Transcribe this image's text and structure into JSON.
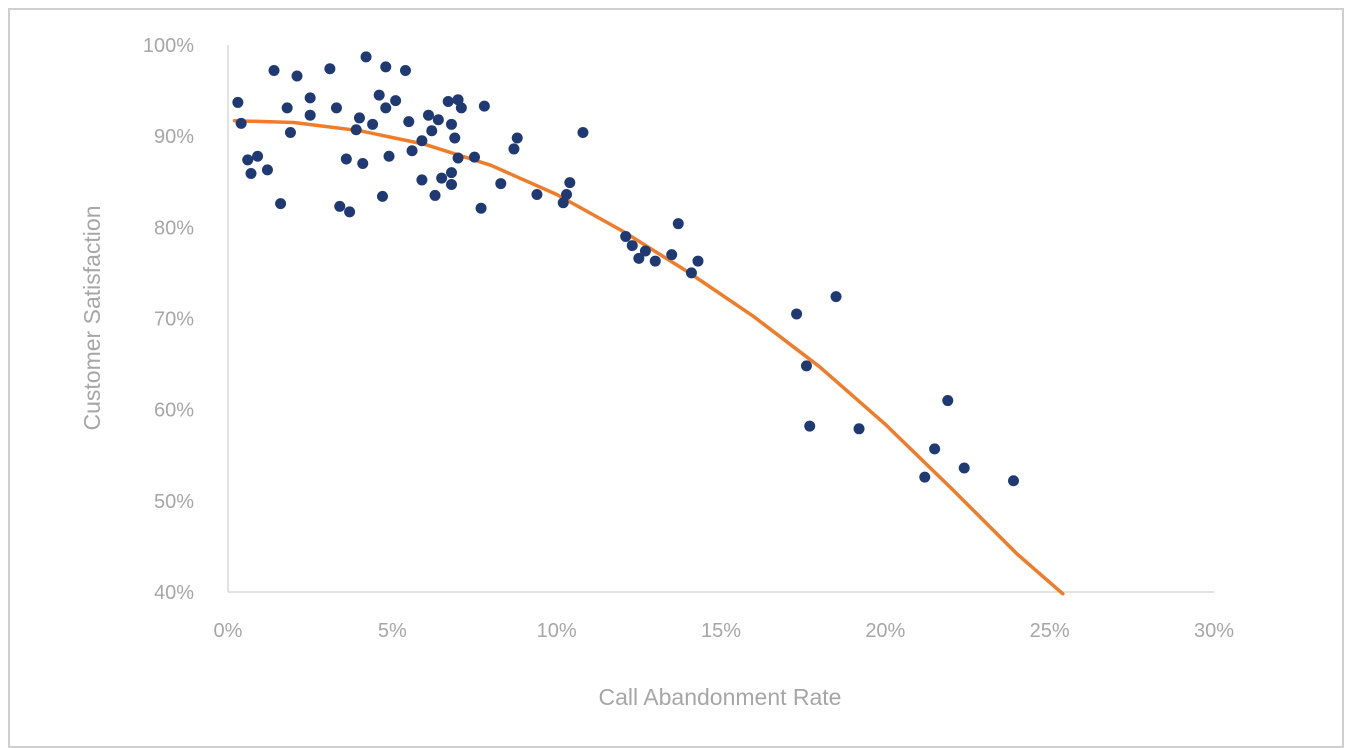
{
  "chart_data": {
    "type": "scatter",
    "title": "",
    "xlabel": "Call Abandonment Rate",
    "ylabel": "Customer Satisfaction",
    "xlim": [
      0,
      30
    ],
    "ylim": [
      40,
      100
    ],
    "x_ticks": [
      0,
      5,
      10,
      15,
      20,
      25,
      30
    ],
    "y_ticks": [
      40,
      50,
      60,
      70,
      80,
      90,
      100
    ],
    "x_tick_labels": [
      "0%",
      "5%",
      "10%",
      "15%",
      "20%",
      "25%",
      "30%"
    ],
    "y_tick_labels": [
      "40%",
      "50%",
      "60%",
      "70%",
      "80%",
      "90%",
      "100%"
    ],
    "grid": false,
    "legend": false,
    "colors": {
      "points": "#1f3a73",
      "trendline": "#f07c2a",
      "axis": "#d9d9d9",
      "text": "#a6a6a6"
    },
    "series": [
      {
        "type": "scatter",
        "points": [
          {
            "x": 0.3,
            "y": 93.7
          },
          {
            "x": 0.4,
            "y": 91.4
          },
          {
            "x": 0.6,
            "y": 87.4
          },
          {
            "x": 0.7,
            "y": 85.9
          },
          {
            "x": 0.9,
            "y": 87.8
          },
          {
            "x": 1.2,
            "y": 86.3
          },
          {
            "x": 1.4,
            "y": 97.2
          },
          {
            "x": 1.6,
            "y": 82.6
          },
          {
            "x": 1.8,
            "y": 93.1
          },
          {
            "x": 1.9,
            "y": 90.4
          },
          {
            "x": 2.1,
            "y": 96.6
          },
          {
            "x": 2.5,
            "y": 94.2
          },
          {
            "x": 2.5,
            "y": 92.3
          },
          {
            "x": 3.1,
            "y": 97.4
          },
          {
            "x": 3.3,
            "y": 93.1
          },
          {
            "x": 3.4,
            "y": 82.3
          },
          {
            "x": 3.6,
            "y": 87.5
          },
          {
            "x": 3.7,
            "y": 81.7
          },
          {
            "x": 3.9,
            "y": 90.7
          },
          {
            "x": 4.0,
            "y": 92.0
          },
          {
            "x": 4.1,
            "y": 87.0
          },
          {
            "x": 4.2,
            "y": 98.7
          },
          {
            "x": 4.4,
            "y": 91.3
          },
          {
            "x": 4.6,
            "y": 94.5
          },
          {
            "x": 4.7,
            "y": 83.4
          },
          {
            "x": 4.8,
            "y": 93.1
          },
          {
            "x": 4.8,
            "y": 97.6
          },
          {
            "x": 4.9,
            "y": 87.8
          },
          {
            "x": 5.1,
            "y": 93.9
          },
          {
            "x": 5.4,
            "y": 97.2
          },
          {
            "x": 5.5,
            "y": 91.6
          },
          {
            "x": 5.6,
            "y": 88.4
          },
          {
            "x": 5.9,
            "y": 89.5
          },
          {
            "x": 5.9,
            "y": 85.2
          },
          {
            "x": 6.1,
            "y": 92.3
          },
          {
            "x": 6.2,
            "y": 90.6
          },
          {
            "x": 6.3,
            "y": 83.5
          },
          {
            "x": 6.4,
            "y": 91.8
          },
          {
            "x": 6.5,
            "y": 85.4
          },
          {
            "x": 6.7,
            "y": 93.8
          },
          {
            "x": 6.8,
            "y": 91.3
          },
          {
            "x": 6.8,
            "y": 84.7
          },
          {
            "x": 6.8,
            "y": 86.0
          },
          {
            "x": 6.9,
            "y": 89.8
          },
          {
            "x": 7.0,
            "y": 94.0
          },
          {
            "x": 7.0,
            "y": 87.6
          },
          {
            "x": 7.1,
            "y": 93.1
          },
          {
            "x": 7.5,
            "y": 87.7
          },
          {
            "x": 7.7,
            "y": 82.1
          },
          {
            "x": 7.8,
            "y": 93.3
          },
          {
            "x": 8.3,
            "y": 84.8
          },
          {
            "x": 8.7,
            "y": 88.6
          },
          {
            "x": 8.8,
            "y": 89.8
          },
          {
            "x": 9.4,
            "y": 83.6
          },
          {
            "x": 10.2,
            "y": 82.7
          },
          {
            "x": 10.3,
            "y": 83.6
          },
          {
            "x": 10.4,
            "y": 84.9
          },
          {
            "x": 10.8,
            "y": 90.4
          },
          {
            "x": 12.1,
            "y": 79.0
          },
          {
            "x": 12.3,
            "y": 78.0
          },
          {
            "x": 12.5,
            "y": 76.6
          },
          {
            "x": 12.7,
            "y": 77.4
          },
          {
            "x": 13.0,
            "y": 76.3
          },
          {
            "x": 13.5,
            "y": 77.0
          },
          {
            "x": 13.7,
            "y": 80.4
          },
          {
            "x": 14.1,
            "y": 75.0
          },
          {
            "x": 14.3,
            "y": 76.3
          },
          {
            "x": 17.3,
            "y": 70.5
          },
          {
            "x": 17.6,
            "y": 64.8
          },
          {
            "x": 17.7,
            "y": 58.2
          },
          {
            "x": 18.5,
            "y": 72.4
          },
          {
            "x": 19.2,
            "y": 57.9
          },
          {
            "x": 21.2,
            "y": 52.6
          },
          {
            "x": 21.5,
            "y": 55.7
          },
          {
            "x": 21.9,
            "y": 61.0
          },
          {
            "x": 22.4,
            "y": 53.6
          },
          {
            "x": 23.9,
            "y": 52.2
          }
        ]
      },
      {
        "type": "line",
        "points": [
          {
            "x": 0.2,
            "y": 91.7
          },
          {
            "x": 2.0,
            "y": 91.5
          },
          {
            "x": 4.0,
            "y": 90.6
          },
          {
            "x": 6.0,
            "y": 89.1
          },
          {
            "x": 8.0,
            "y": 86.8
          },
          {
            "x": 10.0,
            "y": 83.6
          },
          {
            "x": 12.0,
            "y": 79.6
          },
          {
            "x": 14.0,
            "y": 75.1
          },
          {
            "x": 16.0,
            "y": 70.2
          },
          {
            "x": 18.0,
            "y": 64.7
          },
          {
            "x": 20.0,
            "y": 58.4
          },
          {
            "x": 22.0,
            "y": 51.4
          },
          {
            "x": 24.0,
            "y": 44.2
          },
          {
            "x": 25.4,
            "y": 39.8
          }
        ]
      }
    ]
  }
}
